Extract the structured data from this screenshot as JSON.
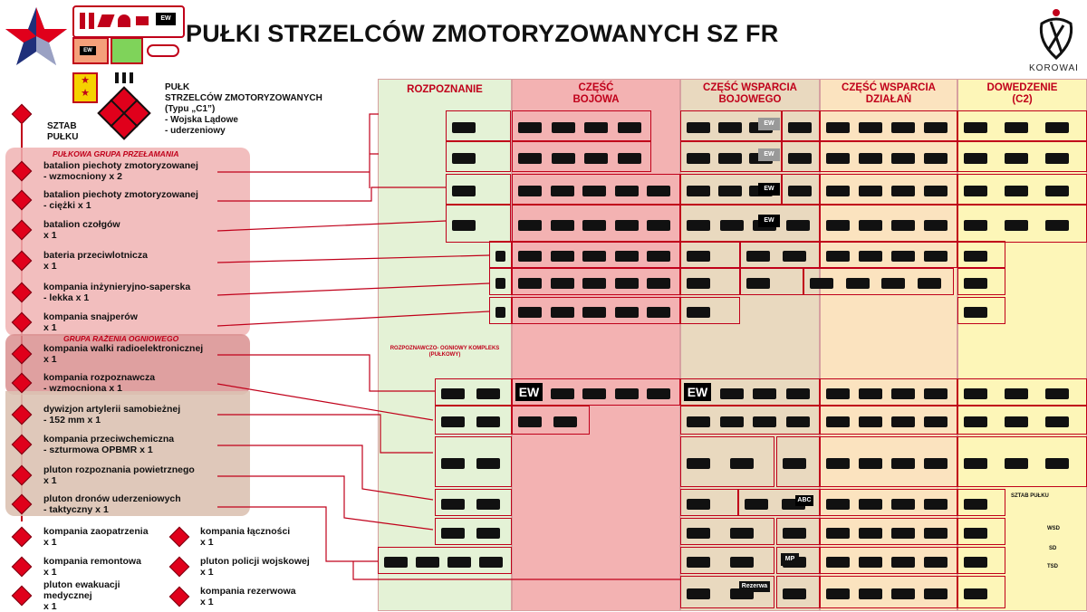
{
  "title": "PUŁKI STRZELCÓW ZMOTORYZOWANYCH SZ FR",
  "logo_text": "KOROWAI",
  "regiment": {
    "line1": "PUŁK",
    "line2": "STRZELCÓW ZMOTORYZOWANYCH",
    "line3": "(Typu „C1”)",
    "line4": "-    Wojska Lądowe",
    "line5": "-    uderzeniowy"
  },
  "hq": {
    "line1": "SZTAB",
    "line2": "PUŁKU"
  },
  "groups": {
    "breakthrough": "PUŁKOWA GRUPA PRZEŁAMANIA",
    "fire": "GRUPA RAŻENIA OGNIOWEGO"
  },
  "units": [
    {
      "l1": "batalion piechoty zmotoryzowanej",
      "l2": "- wzmocniony x 2"
    },
    {
      "l1": "batalion piechoty zmotoryzowanej",
      "l2": "- ciężki x 1"
    },
    {
      "l1": "batalion czołgów",
      "l2": "x 1"
    },
    {
      "l1": "bateria przeciwlotnicza",
      "l2": "x 1"
    },
    {
      "l1": "kompania inżynieryjno-saperska",
      "l2": "- lekka x 1"
    },
    {
      "l1": "kompania snajperów",
      "l2": "x 1"
    },
    {
      "l1": "kompania walki radioelektronicznej",
      "l2": "x 1"
    },
    {
      "l1": "kompania rozpoznawcza",
      "l2": "- wzmocniona x 1"
    },
    {
      "l1": "dywizjon artylerii samobieżnej",
      "l2": "- 152 mm x 1"
    },
    {
      "l1": "kompania przeciwchemiczna",
      "l2": "- szturmowa OPBMR x 1"
    },
    {
      "l1": "pluton rozpoznania powietrznego",
      "l2": "x 1"
    },
    {
      "l1": "pluton dronów uderzeniowych",
      "l2": "- taktyczny x 1"
    }
  ],
  "support_units_left": [
    {
      "l1": "kompania zaopatrzenia",
      "l2": "x 1"
    },
    {
      "l1": "kompania remontowa",
      "l2": "x 1"
    },
    {
      "l1": "pluton ewakuacji",
      "l2": "medycznej",
      "l3": "x 1"
    }
  ],
  "support_units_right": [
    {
      "l1": "kompania łączności",
      "l2": "x 1"
    },
    {
      "l1": "pluton policji wojskowej",
      "l2": "x 1"
    },
    {
      "l1": "kompania rezerwowa",
      "l2": "x 1"
    }
  ],
  "columns": [
    {
      "l1": "ROZPOZNANIE",
      "l2": ""
    },
    {
      "l1": "CZĘŚĆ",
      "l2": "BOJOWA"
    },
    {
      "l1": "CZĘŚĆ WSPARCIA",
      "l2": "BOJOWEGO"
    },
    {
      "l1": "CZĘŚĆ WSPARCIA",
      "l2": "DZIAŁAŃ"
    },
    {
      "l1": "DOWEDZENIE",
      "l2": "(C2)"
    }
  ],
  "recon_complex": {
    "l1": "ROZPOZNAWCZO- OGNIOWY KOMPLEKS",
    "l2": "(PUŁKOWY)"
  },
  "markers": {
    "ew": "EW",
    "abc": "ABC",
    "mp": "MP",
    "rezerwa": "Rezerwa",
    "sztab_pulku": "SZTAB PUŁKU",
    "wsd": "WSD",
    "sd": "SD",
    "tsd": "TSD"
  },
  "colors": {
    "accent_red": "#c0001a",
    "recon_green": "#e4f2d6",
    "combat_pink": "#f3b2b2",
    "combat_support_tan": "#e9d9bf",
    "action_support_orange": "#fbe3bf",
    "c2_yellow": "#fdf6b8"
  }
}
